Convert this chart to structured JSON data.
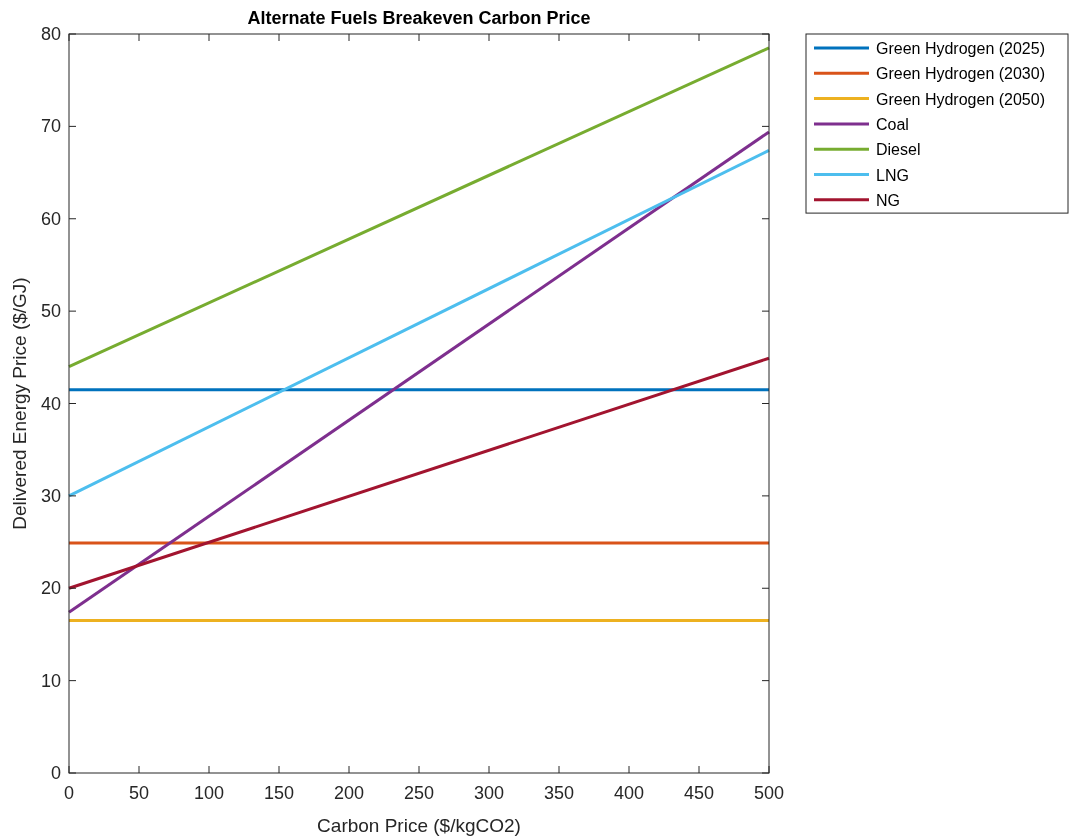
{
  "chart_data": {
    "type": "line",
    "title": "Alternate Fuels Breakeven Carbon Price",
    "xlabel": "Carbon Price ($/kgCO2)",
    "ylabel": "Delivered Energy Price ($/GJ)",
    "xlim": [
      0,
      500
    ],
    "ylim": [
      0,
      80
    ],
    "xticks": [
      0,
      50,
      100,
      150,
      200,
      250,
      300,
      350,
      400,
      450,
      500
    ],
    "yticks": [
      0,
      10,
      20,
      30,
      40,
      50,
      60,
      70,
      80
    ],
    "grid": false,
    "legend": "top right",
    "marker": "none",
    "line_style": "solid",
    "x": [
      0,
      500
    ],
    "series": [
      {
        "name": "Green Hydrogen (2025)",
        "color": "#0072bd",
        "values": [
          41.5,
          41.5
        ]
      },
      {
        "name": "Green Hydrogen (2030)",
        "color": "#d95319",
        "values": [
          24.9,
          24.9
        ]
      },
      {
        "name": "Green Hydrogen (2050)",
        "color": "#edb120",
        "values": [
          16.5,
          16.5
        ]
      },
      {
        "name": "Coal",
        "color": "#7e2f8e",
        "values": [
          17.4,
          69.4
        ]
      },
      {
        "name": "Diesel",
        "color": "#77ac30",
        "values": [
          44,
          78.5
        ]
      },
      {
        "name": "LNG",
        "color": "#4dbeee",
        "values": [
          30,
          67.4
        ]
      },
      {
        "name": "NG",
        "color": "#a2142f",
        "values": [
          20,
          44.9
        ]
      }
    ]
  }
}
